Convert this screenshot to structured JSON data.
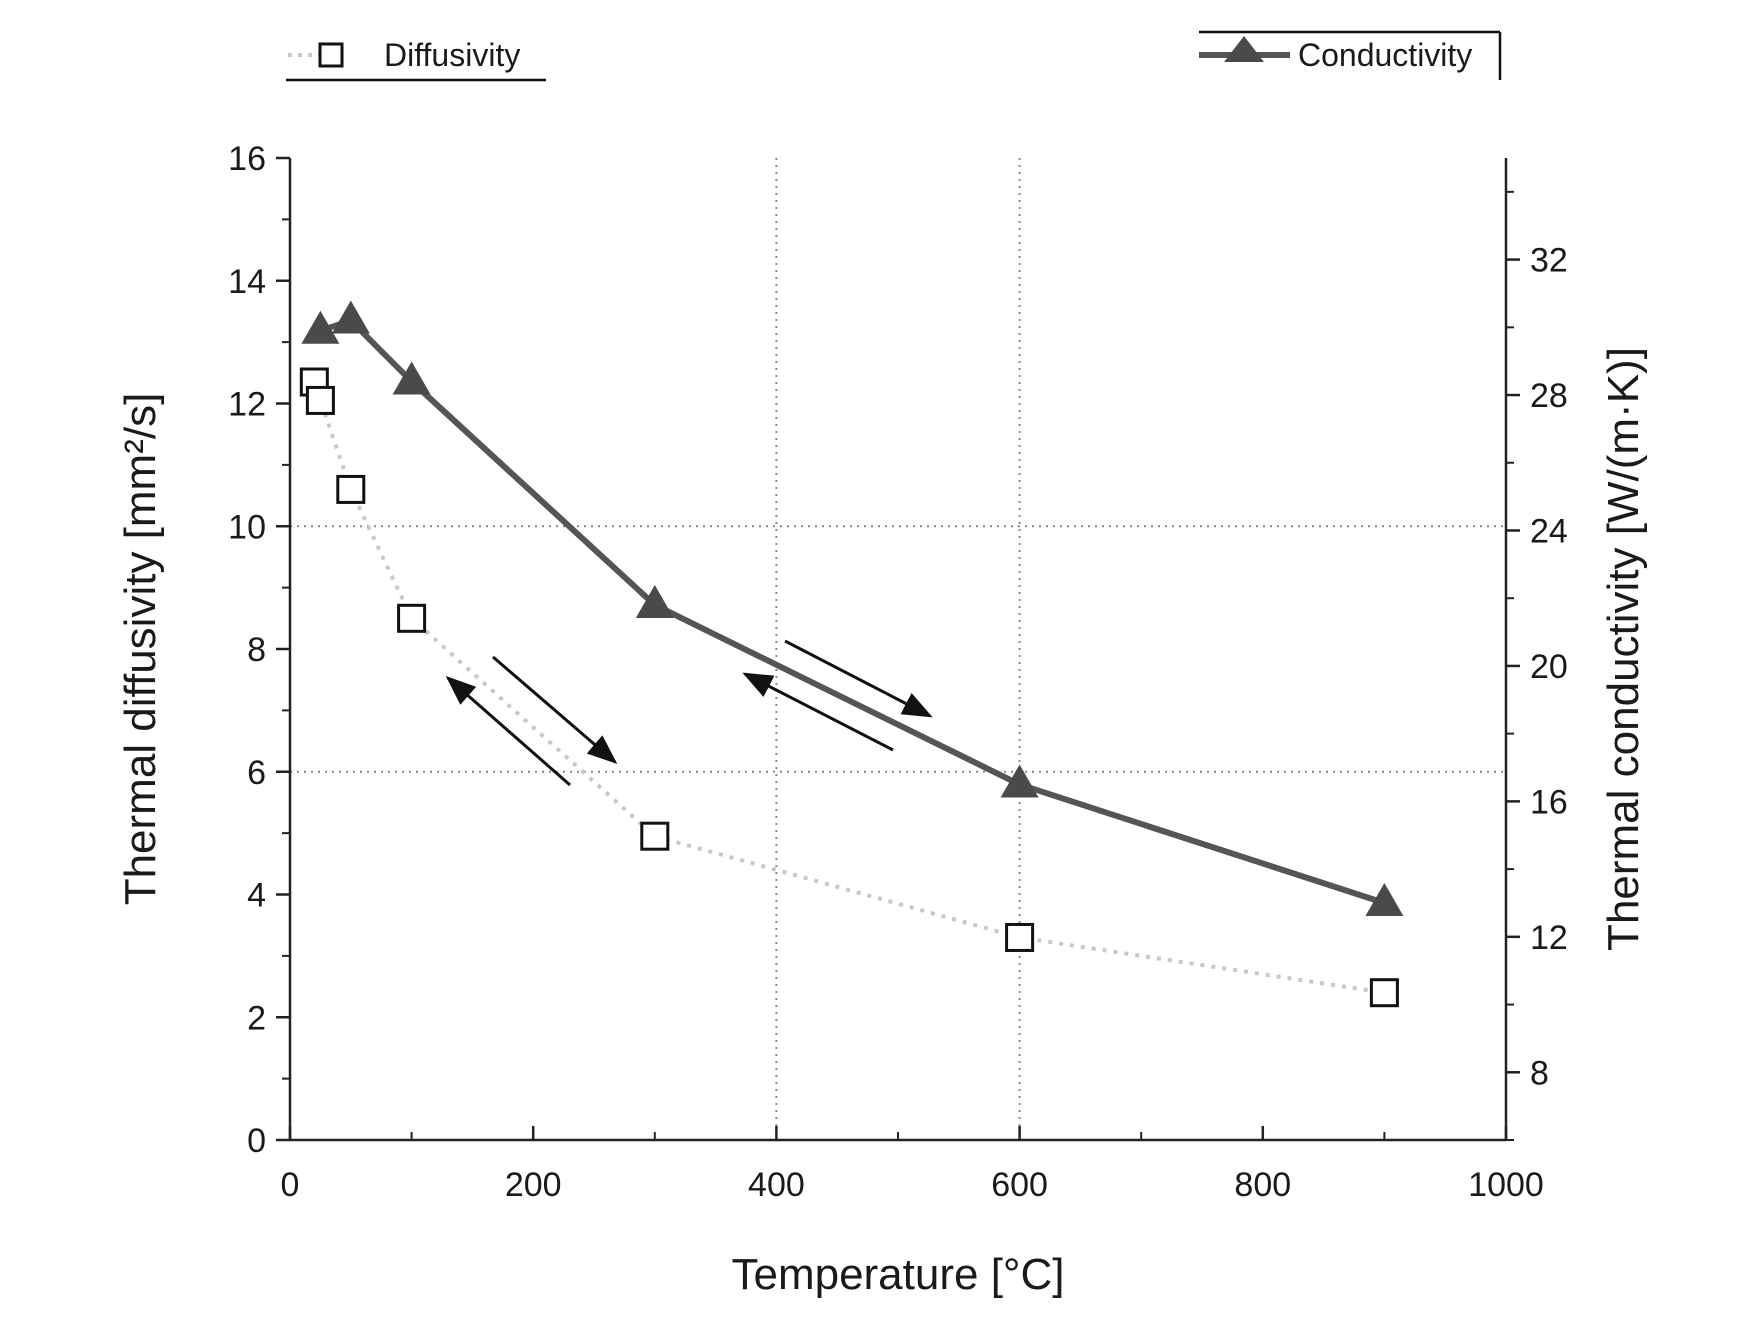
{
  "chart_data": {
    "type": "line",
    "x": [
      25,
      50,
      100,
      300,
      600,
      900
    ],
    "xlabel": "Temperature [°C]",
    "xlim": [
      0,
      1000
    ],
    "xticks": [
      0,
      200,
      400,
      600,
      800,
      1000
    ],
    "ylabel_left": "Thermal diffusivity [mm²/s]",
    "ylim_left": [
      0,
      16
    ],
    "yticks_left": [
      0,
      2,
      4,
      6,
      8,
      10,
      12,
      14,
      16
    ],
    "ylabel_right": "Thermal conductivity [W/(m·K)]",
    "ylim_right": [
      6,
      35
    ],
    "yticks_right": [
      8,
      12,
      16,
      20,
      24,
      28,
      32
    ],
    "grid": "dotted at x=400, x=600, y=6, y=10",
    "series": [
      {
        "name": "Diffusivity",
        "axis": "left",
        "marker": "open-square",
        "line": "dotted light gray",
        "x": [
          20,
          25,
          50,
          100,
          300,
          600,
          900
        ],
        "values": [
          12.35,
          12.05,
          10.6,
          8.5,
          4.95,
          3.3,
          2.4
        ]
      },
      {
        "name": "Conductivity",
        "axis": "right",
        "marker": "filled-triangle",
        "line": "solid dark gray",
        "x": [
          25,
          50,
          100,
          300,
          600,
          900
        ],
        "values": [
          29.9,
          30.2,
          28.4,
          21.8,
          16.5,
          13.0
        ]
      }
    ],
    "legend": [
      "Diffusivity",
      "Conductivity"
    ],
    "annotations": "paired heating/cooling arrows along both curves"
  },
  "colors": {
    "diffusivity_line": "#c8c8c8",
    "conductivity_line": "#555555",
    "marker_fill": "#4a4a4a",
    "axis": "#222222",
    "grid": "#888888"
  }
}
